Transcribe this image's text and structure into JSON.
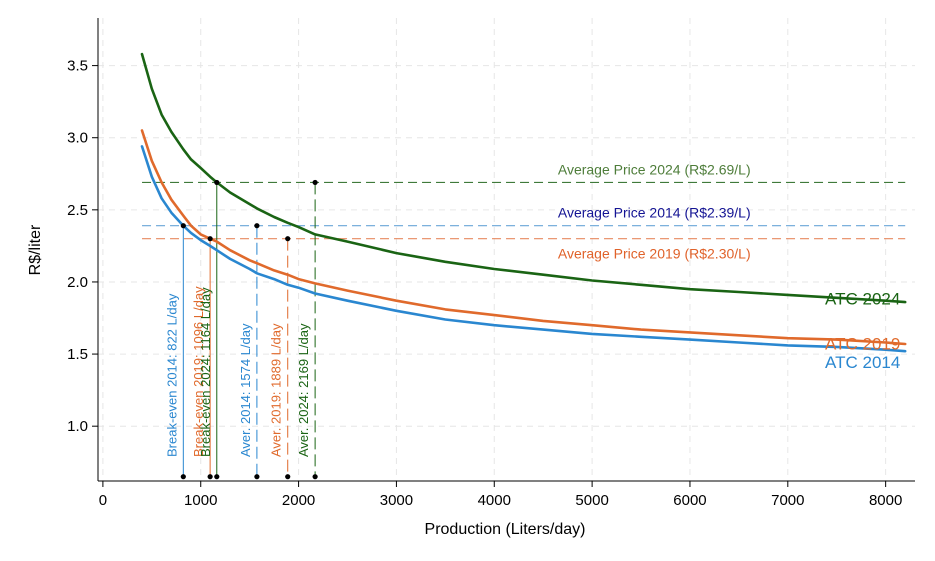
{
  "chart_data": {
    "type": "line",
    "title": "",
    "xlabel": "Production (Liters/day)",
    "ylabel": "R$/liter",
    "xlim": [
      -50,
      8300
    ],
    "ylim": [
      0.62,
      3.83
    ],
    "grid": true,
    "x_ticks": [
      0,
      1000,
      2000,
      3000,
      4000,
      5000,
      6000,
      7000,
      8000
    ],
    "y_ticks": [
      1.0,
      1.5,
      2.0,
      2.5,
      3.0,
      3.5
    ],
    "x_tick_labels": [
      "0",
      "1000",
      "2000",
      "3000",
      "4000",
      "5000",
      "6000",
      "7000",
      "8000"
    ],
    "y_tick_labels": [
      "1.0",
      "1.5",
      "2.0",
      "2.5",
      "3.0",
      "3.5"
    ],
    "curve_x": [
      400,
      500,
      600,
      700,
      822,
      900,
      1000,
      1096,
      1164,
      1300,
      1500,
      1574,
      1750,
      1889,
      2000,
      2169,
      2500,
      3000,
      3500,
      4000,
      4500,
      5000,
      5500,
      6000,
      6500,
      7000,
      7500,
      8000,
      8200
    ],
    "series": [
      {
        "name": "ATC 2014",
        "label": "ATC 2014",
        "color": "#2a87d0",
        "values": [
          2.94,
          2.73,
          2.58,
          2.48,
          2.39,
          2.34,
          2.29,
          2.25,
          2.22,
          2.16,
          2.09,
          2.06,
          2.02,
          1.98,
          1.96,
          1.92,
          1.87,
          1.8,
          1.74,
          1.7,
          1.67,
          1.64,
          1.62,
          1.6,
          1.58,
          1.56,
          1.55,
          1.53,
          1.52
        ]
      },
      {
        "name": "ATC 2019",
        "label": "ATC 2019",
        "color": "#e06a2c",
        "values": [
          3.05,
          2.84,
          2.69,
          2.57,
          2.46,
          2.39,
          2.33,
          2.3,
          2.28,
          2.22,
          2.15,
          2.13,
          2.08,
          2.05,
          2.02,
          1.99,
          1.94,
          1.87,
          1.81,
          1.77,
          1.73,
          1.7,
          1.67,
          1.65,
          1.63,
          1.61,
          1.6,
          1.58,
          1.57
        ]
      },
      {
        "name": "ATC 2024",
        "label": "ATC 2024",
        "color": "#1a6414",
        "values": [
          3.58,
          3.34,
          3.16,
          3.04,
          2.92,
          2.85,
          2.79,
          2.73,
          2.69,
          2.62,
          2.54,
          2.51,
          2.45,
          2.41,
          2.38,
          2.33,
          2.28,
          2.2,
          2.14,
          2.09,
          2.05,
          2.01,
          1.98,
          1.95,
          1.93,
          1.91,
          1.89,
          1.87,
          1.86
        ]
      }
    ],
    "price_lines": [
      {
        "year": 2024,
        "value": 2.69,
        "label": "Average Price 2024 (R$2.69/L)",
        "color": "#3f7a3a",
        "label_color": "#4e7d3a"
      },
      {
        "year": 2014,
        "value": 2.39,
        "label": "Average Price 2014 (R$2.39/L)",
        "color": "#6aa6d8",
        "label_color": "#141494"
      },
      {
        "year": 2019,
        "value": 2.3,
        "label": "Average Price 2019 (R$2.30/L)",
        "color": "#e88a60",
        "label_color": "#e0622a"
      }
    ],
    "price_line_x_range": [
      400,
      8200
    ],
    "vertical_lines": [
      {
        "x": 822,
        "y_top": 2.39,
        "style": "solid",
        "color": "#2a87d0",
        "label": "Break-even 2014: 822 L/day"
      },
      {
        "x": 1096,
        "y_top": 2.3,
        "style": "solid",
        "color": "#e06a2c",
        "label": "Break-even 2019: 1096 L/day"
      },
      {
        "x": 1164,
        "y_top": 2.69,
        "style": "solid",
        "color": "#1a6414",
        "label": "Break-even 2024: 1164 L/day"
      },
      {
        "x": 1574,
        "y_top": 2.39,
        "style": "dashed",
        "color": "#2a87d0",
        "label": "Aver. 2014: 1574 L/day"
      },
      {
        "x": 1889,
        "y_top": 2.3,
        "style": "dashed",
        "color": "#e06a2c",
        "label": "Aver. 2019: 1889 L/day"
      },
      {
        "x": 2169,
        "y_top": 2.69,
        "style": "dashed",
        "color": "#1a6414",
        "label": "Aver. 2024: 2169 L/day"
      }
    ],
    "vertical_line_bottom": 0.65,
    "grid_color": "#e6e6e6",
    "axis_color": "#000000"
  }
}
